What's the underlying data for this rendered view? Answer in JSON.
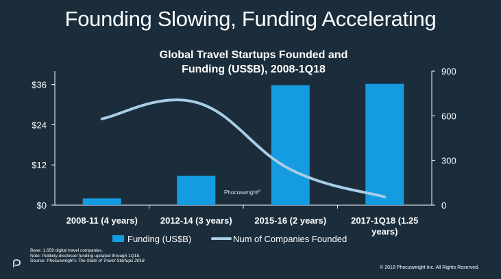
{
  "slide": {
    "title": "Founding Slowing, Funding Accelerating"
  },
  "watermark": "Phocuswright",
  "footnotes": {
    "base": "Base: 1,659 digital travel companies.",
    "note": "Note: Publicly-disclosed funding updated through 1Q18.",
    "source_prefix": "Source: Phocuswright's ",
    "source_title": "The State of Travel Startups 2018"
  },
  "copyright": "© 2018 Phocuswright Inc. All Rights Reserved.",
  "colors": {
    "background": "#1b2d3b",
    "bar": "#159be0",
    "line": "#a8cde6",
    "axis": "#ffffff"
  },
  "chart_data": {
    "type": "bar",
    "title_line1": "Global Travel Startups Founded and",
    "title_line2": "Funding (US$B), 2008-1Q18",
    "categories": [
      "2008-11 (4 years)",
      "2012-14 (3 years)",
      "2015-16 (2 years)",
      "2017-1Q18 (1.25 years)"
    ],
    "category_lines": [
      [
        "2008-11 (4 years)"
      ],
      [
        "2012-14 (3 years)"
      ],
      [
        "2015-16 (2 years)"
      ],
      [
        "2017-1Q18 (1.25",
        "years)"
      ]
    ],
    "series": [
      {
        "name": "Funding (US$B)",
        "type": "bar",
        "axis": "left",
        "values": [
          2,
          8.8,
          35.8,
          36.2
        ]
      },
      {
        "name": "Num of Companies Founded",
        "type": "line",
        "axis": "right",
        "values": [
          580,
          690,
          240,
          55
        ]
      }
    ],
    "y_left": {
      "ticks": [
        "$0",
        "$12",
        "$24",
        "$36"
      ],
      "tick_values": [
        0,
        12,
        24,
        36
      ],
      "lim": [
        0,
        40
      ]
    },
    "y_right": {
      "ticks": [
        "0",
        "300",
        "600",
        "900"
      ],
      "tick_values": [
        0,
        300,
        600,
        900
      ],
      "lim": [
        0,
        900
      ]
    },
    "grid": false,
    "legend_position": "bottom"
  }
}
